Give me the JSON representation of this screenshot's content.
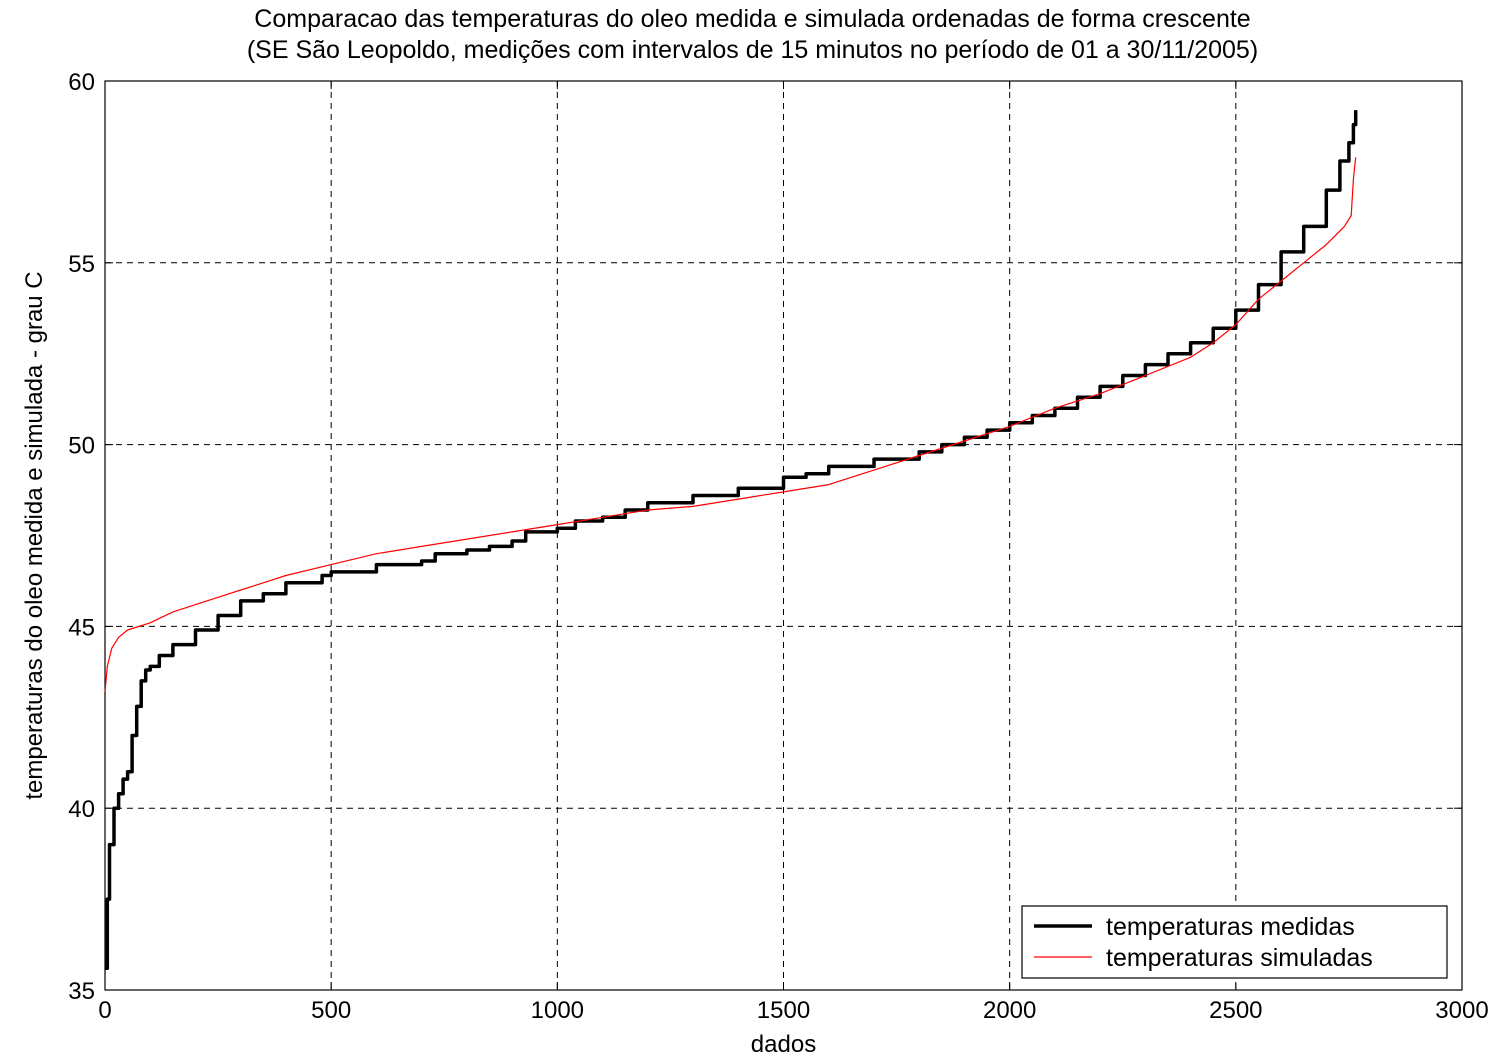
{
  "chart_data": {
    "type": "line",
    "title": "Comparacao das temperaturas do oleo medida e simulada ordenadas de forma crescente",
    "subtitle": "(SE São Leopoldo, medições com intervalos de 15 minutos no período de 01 a 30/11/2005)",
    "xlabel": "dados",
    "ylabel": "temperaturas do oleo medida e simulada - grau C",
    "xlim": [
      0,
      3000
    ],
    "ylim": [
      35,
      60
    ],
    "xticks": [
      "0",
      "500",
      "1000",
      "1500",
      "2000",
      "2500",
      "3000"
    ],
    "yticks": [
      "35",
      "40",
      "45",
      "50",
      "55",
      "60"
    ],
    "grid": true,
    "legend_position": "bottom-right",
    "series": [
      {
        "name": "temperaturas medidas",
        "color": "#000000",
        "x": [
          0,
          5,
          10,
          20,
          30,
          40,
          50,
          60,
          70,
          80,
          90,
          100,
          120,
          150,
          200,
          250,
          300,
          350,
          400,
          470,
          480,
          500,
          580,
          600,
          700,
          730,
          800,
          850,
          900,
          930,
          1000,
          1040,
          1100,
          1150,
          1200,
          1300,
          1400,
          1500,
          1550,
          1600,
          1700,
          1800,
          1850,
          1900,
          1950,
          2000,
          2050,
          2100,
          2150,
          2200,
          2250,
          2300,
          2350,
          2400,
          2450,
          2500,
          2550,
          2600,
          2650,
          2700,
          2730,
          2750,
          2760,
          2765
        ],
        "values": [
          35.6,
          37.5,
          39.0,
          40.0,
          40.4,
          40.8,
          41.0,
          42.0,
          42.8,
          43.5,
          43.8,
          43.9,
          44.2,
          44.5,
          44.9,
          45.3,
          45.7,
          45.9,
          46.2,
          46.2,
          46.4,
          46.5,
          46.5,
          46.7,
          46.8,
          47.0,
          47.1,
          47.2,
          47.35,
          47.6,
          47.7,
          47.9,
          48.0,
          48.2,
          48.4,
          48.6,
          48.8,
          49.1,
          49.2,
          49.4,
          49.6,
          49.8,
          50.0,
          50.2,
          50.4,
          50.6,
          50.8,
          51.0,
          51.3,
          51.6,
          51.9,
          52.2,
          52.5,
          52.8,
          53.2,
          53.7,
          54.4,
          55.3,
          56.0,
          57.0,
          57.8,
          58.3,
          58.8,
          59.2
        ]
      },
      {
        "name": "temperaturas simuladas",
        "color": "#ff0000",
        "x": [
          0,
          5,
          15,
          30,
          50,
          100,
          150,
          200,
          250,
          300,
          350,
          400,
          500,
          600,
          700,
          800,
          900,
          1000,
          1100,
          1200,
          1300,
          1400,
          1500,
          1600,
          1650,
          1700,
          1800,
          1900,
          2000,
          2100,
          2200,
          2300,
          2400,
          2450,
          2500,
          2550,
          2600,
          2650,
          2700,
          2740,
          2755,
          2760,
          2765
        ],
        "values": [
          43.2,
          43.9,
          44.4,
          44.7,
          44.9,
          45.1,
          45.4,
          45.6,
          45.8,
          46.0,
          46.2,
          46.4,
          46.7,
          47.0,
          47.2,
          47.4,
          47.6,
          47.8,
          48.0,
          48.2,
          48.3,
          48.5,
          48.7,
          48.9,
          49.1,
          49.3,
          49.7,
          50.1,
          50.5,
          51.0,
          51.4,
          51.9,
          52.4,
          52.8,
          53.3,
          54.0,
          54.5,
          55.0,
          55.5,
          56.0,
          56.3,
          57.3,
          57.9
        ]
      }
    ]
  }
}
